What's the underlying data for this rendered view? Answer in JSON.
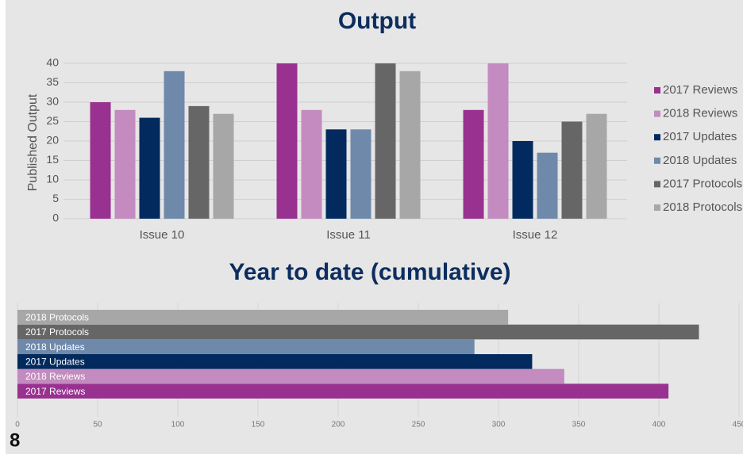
{
  "page_number": "8",
  "chart_data": [
    {
      "type": "bar",
      "title": "Output",
      "y_label": "Published Output",
      "categories": [
        "Issue 10",
        "Issue 11",
        "Issue 12"
      ],
      "series": [
        {
          "name": "2017 Reviews",
          "color": "#98318f",
          "values": [
            30,
            40,
            28
          ]
        },
        {
          "name": "2018 Reviews",
          "color": "#c38bbf",
          "values": [
            28,
            28,
            40
          ]
        },
        {
          "name": "2017 Updates",
          "color": "#022a5e",
          "values": [
            26,
            23,
            20
          ]
        },
        {
          "name": "2018 Updates",
          "color": "#6e89aa",
          "values": [
            38,
            23,
            17
          ]
        },
        {
          "name": "2017 Protocols",
          "color": "#666666",
          "values": [
            29,
            40,
            25
          ]
        },
        {
          "name": "2018 Protocols",
          "color": "#a7a7a7",
          "values": [
            27,
            38,
            27
          ]
        }
      ],
      "ylim": [
        0,
        40
      ],
      "yticks": [
        0,
        5,
        10,
        15,
        20,
        25,
        30,
        35,
        40
      ],
      "grid": true,
      "legend": "right"
    },
    {
      "type": "hbar",
      "title": "Year to date (cumulative)",
      "categories": [
        "2017 Reviews",
        "2018 Reviews",
        "2017 Updates",
        "2018 Updates",
        "2017 Protocols",
        "2018 Protocols"
      ],
      "values": [
        406,
        341,
        321,
        285,
        425,
        306
      ],
      "colors": [
        "#98318f",
        "#c38bbf",
        "#022a5e",
        "#6e89aa",
        "#666666",
        "#a7a7a7"
      ],
      "xlim": [
        0,
        450
      ],
      "xticks": [
        0,
        50,
        100,
        150,
        200,
        250,
        300,
        350,
        400,
        450
      ],
      "grid": true
    }
  ]
}
